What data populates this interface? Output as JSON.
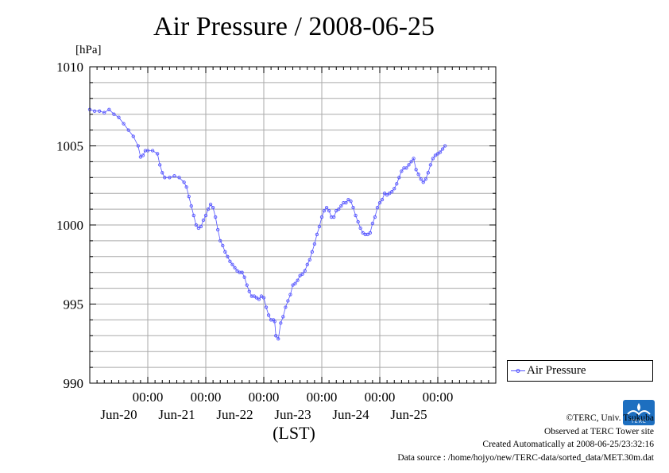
{
  "title": "Air Pressure / 2008-06-25",
  "unit_label": "[hPa]",
  "xlabel": "(LST)",
  "legend": {
    "label": "Air Pressure"
  },
  "footer": {
    "copyright": "©TERC, Univ. Tsukuba",
    "observed": "Observed at TERC Tower site",
    "created": "Created Automatically at 2008-06-25/23:32:16",
    "source": "Data source : /home/hojyo/new/TERC-data/sorted_data/MET.30m.dat"
  },
  "logo": {
    "text": "TERC",
    "color": "#1d6fc0"
  },
  "colors": {
    "series": "#5555ff",
    "grid": "#aaaaaa",
    "axis": "#000000"
  },
  "chart_data": {
    "type": "line",
    "title": "Air Pressure / 2008-06-25",
    "ylabel": "[hPa]",
    "xlabel": "(LST)",
    "ylim": [
      990,
      1010
    ],
    "xlim_hours": [
      -24,
      144
    ],
    "x_unit": "hours from 2008-06-20 00:00 LST",
    "grid": true,
    "legend_position": "right",
    "y_ticks": [
      990,
      995,
      1000,
      1005,
      1010
    ],
    "x_ticks": [
      {
        "time": "00:00",
        "date": "Jun-20",
        "hour": 0
      },
      {
        "time": "00:00",
        "date": "Jun-21",
        "hour": 24
      },
      {
        "time": "00:00",
        "date": "Jun-22",
        "hour": 48
      },
      {
        "time": "00:00",
        "date": "Jun-23",
        "hour": 72
      },
      {
        "time": "00:00",
        "date": "Jun-24",
        "hour": 96
      },
      {
        "time": "00:00",
        "date": "Jun-25",
        "hour": 120
      }
    ],
    "series": [
      {
        "name": "Air Pressure",
        "points": [
          [
            -24,
            1007.3
          ],
          [
            -22,
            1007.2
          ],
          [
            -20,
            1007.2
          ],
          [
            -18,
            1007.1
          ],
          [
            -16,
            1007.3
          ],
          [
            -14,
            1007.0
          ],
          [
            -12,
            1006.8
          ],
          [
            -10,
            1006.4
          ],
          [
            -8,
            1006.0
          ],
          [
            -6,
            1005.6
          ],
          [
            -4,
            1005.0
          ],
          [
            -3,
            1004.3
          ],
          [
            -2,
            1004.4
          ],
          [
            -1,
            1004.7
          ],
          [
            0,
            1004.7
          ],
          [
            2,
            1004.7
          ],
          [
            4,
            1004.5
          ],
          [
            5,
            1003.8
          ],
          [
            6,
            1003.3
          ],
          [
            7,
            1003.0
          ],
          [
            9,
            1003.0
          ],
          [
            11,
            1003.1
          ],
          [
            13,
            1003.0
          ],
          [
            15,
            1002.7
          ],
          [
            16,
            1002.4
          ],
          [
            17,
            1001.8
          ],
          [
            18,
            1001.2
          ],
          [
            19,
            1000.6
          ],
          [
            20,
            1000.0
          ],
          [
            21,
            999.8
          ],
          [
            22,
            999.9
          ],
          [
            23,
            1000.3
          ],
          [
            24,
            1000.6
          ],
          [
            25,
            1001.0
          ],
          [
            26,
            1001.3
          ],
          [
            27,
            1001.1
          ],
          [
            28,
            1000.5
          ],
          [
            29,
            999.7
          ],
          [
            30,
            999.0
          ],
          [
            31,
            998.7
          ],
          [
            32,
            998.3
          ],
          [
            33,
            998.0
          ],
          [
            34,
            997.7
          ],
          [
            35,
            997.5
          ],
          [
            36,
            997.3
          ],
          [
            37,
            997.1
          ],
          [
            38,
            997.0
          ],
          [
            39,
            997.0
          ],
          [
            40,
            996.7
          ],
          [
            41,
            996.2
          ],
          [
            42,
            995.8
          ],
          [
            43,
            995.5
          ],
          [
            44,
            995.5
          ],
          [
            45,
            995.4
          ],
          [
            46,
            995.3
          ],
          [
            47,
            995.5
          ],
          [
            48,
            995.4
          ],
          [
            49,
            994.8
          ],
          [
            50,
            994.3
          ],
          [
            51,
            994.0
          ],
          [
            52,
            994.0
          ],
          [
            52.5,
            993.9
          ],
          [
            53,
            993.0
          ],
          [
            54,
            992.8
          ],
          [
            55,
            993.8
          ],
          [
            56,
            994.2
          ],
          [
            57,
            994.8
          ],
          [
            58,
            995.2
          ],
          [
            59,
            995.6
          ],
          [
            60,
            996.2
          ],
          [
            61,
            996.3
          ],
          [
            62,
            996.5
          ],
          [
            63,
            996.8
          ],
          [
            64,
            996.9
          ],
          [
            65,
            997.1
          ],
          [
            66,
            997.5
          ],
          [
            67,
            997.8
          ],
          [
            68,
            998.3
          ],
          [
            69,
            998.8
          ],
          [
            70,
            999.4
          ],
          [
            71,
            999.9
          ],
          [
            72,
            1000.5
          ],
          [
            73,
            1000.9
          ],
          [
            74,
            1001.1
          ],
          [
            75,
            1000.9
          ],
          [
            76,
            1000.5
          ],
          [
            77,
            1000.5
          ],
          [
            78,
            1000.9
          ],
          [
            79,
            1001.0
          ],
          [
            80,
            1001.2
          ],
          [
            81,
            1001.4
          ],
          [
            82,
            1001.4
          ],
          [
            83,
            1001.6
          ],
          [
            84,
            1001.5
          ],
          [
            85,
            1001.1
          ],
          [
            86,
            1000.6
          ],
          [
            87,
            1000.2
          ],
          [
            88,
            999.8
          ],
          [
            89,
            999.5
          ],
          [
            90,
            999.4
          ],
          [
            91,
            999.4
          ],
          [
            92,
            999.5
          ],
          [
            93,
            1000.1
          ],
          [
            94,
            1000.5
          ],
          [
            95,
            1001.1
          ],
          [
            96,
            1001.4
          ],
          [
            97,
            1001.6
          ],
          [
            98,
            1002.0
          ],
          [
            99,
            1001.9
          ],
          [
            100,
            1002.0
          ],
          [
            101,
            1002.1
          ],
          [
            102,
            1002.3
          ],
          [
            103,
            1002.6
          ],
          [
            104,
            1003.0
          ],
          [
            105,
            1003.4
          ],
          [
            106,
            1003.6
          ],
          [
            107,
            1003.6
          ],
          [
            108,
            1003.8
          ],
          [
            109,
            1004.0
          ],
          [
            110,
            1004.2
          ],
          [
            111,
            1003.5
          ],
          [
            112,
            1003.2
          ],
          [
            113,
            1002.9
          ],
          [
            114,
            1002.7
          ],
          [
            115,
            1002.9
          ],
          [
            116,
            1003.3
          ],
          [
            117,
            1003.8
          ],
          [
            118,
            1004.2
          ],
          [
            119,
            1004.4
          ],
          [
            120,
            1004.5
          ],
          [
            121,
            1004.6
          ],
          [
            122,
            1004.8
          ],
          [
            123,
            1005.0
          ]
        ]
      }
    ]
  }
}
